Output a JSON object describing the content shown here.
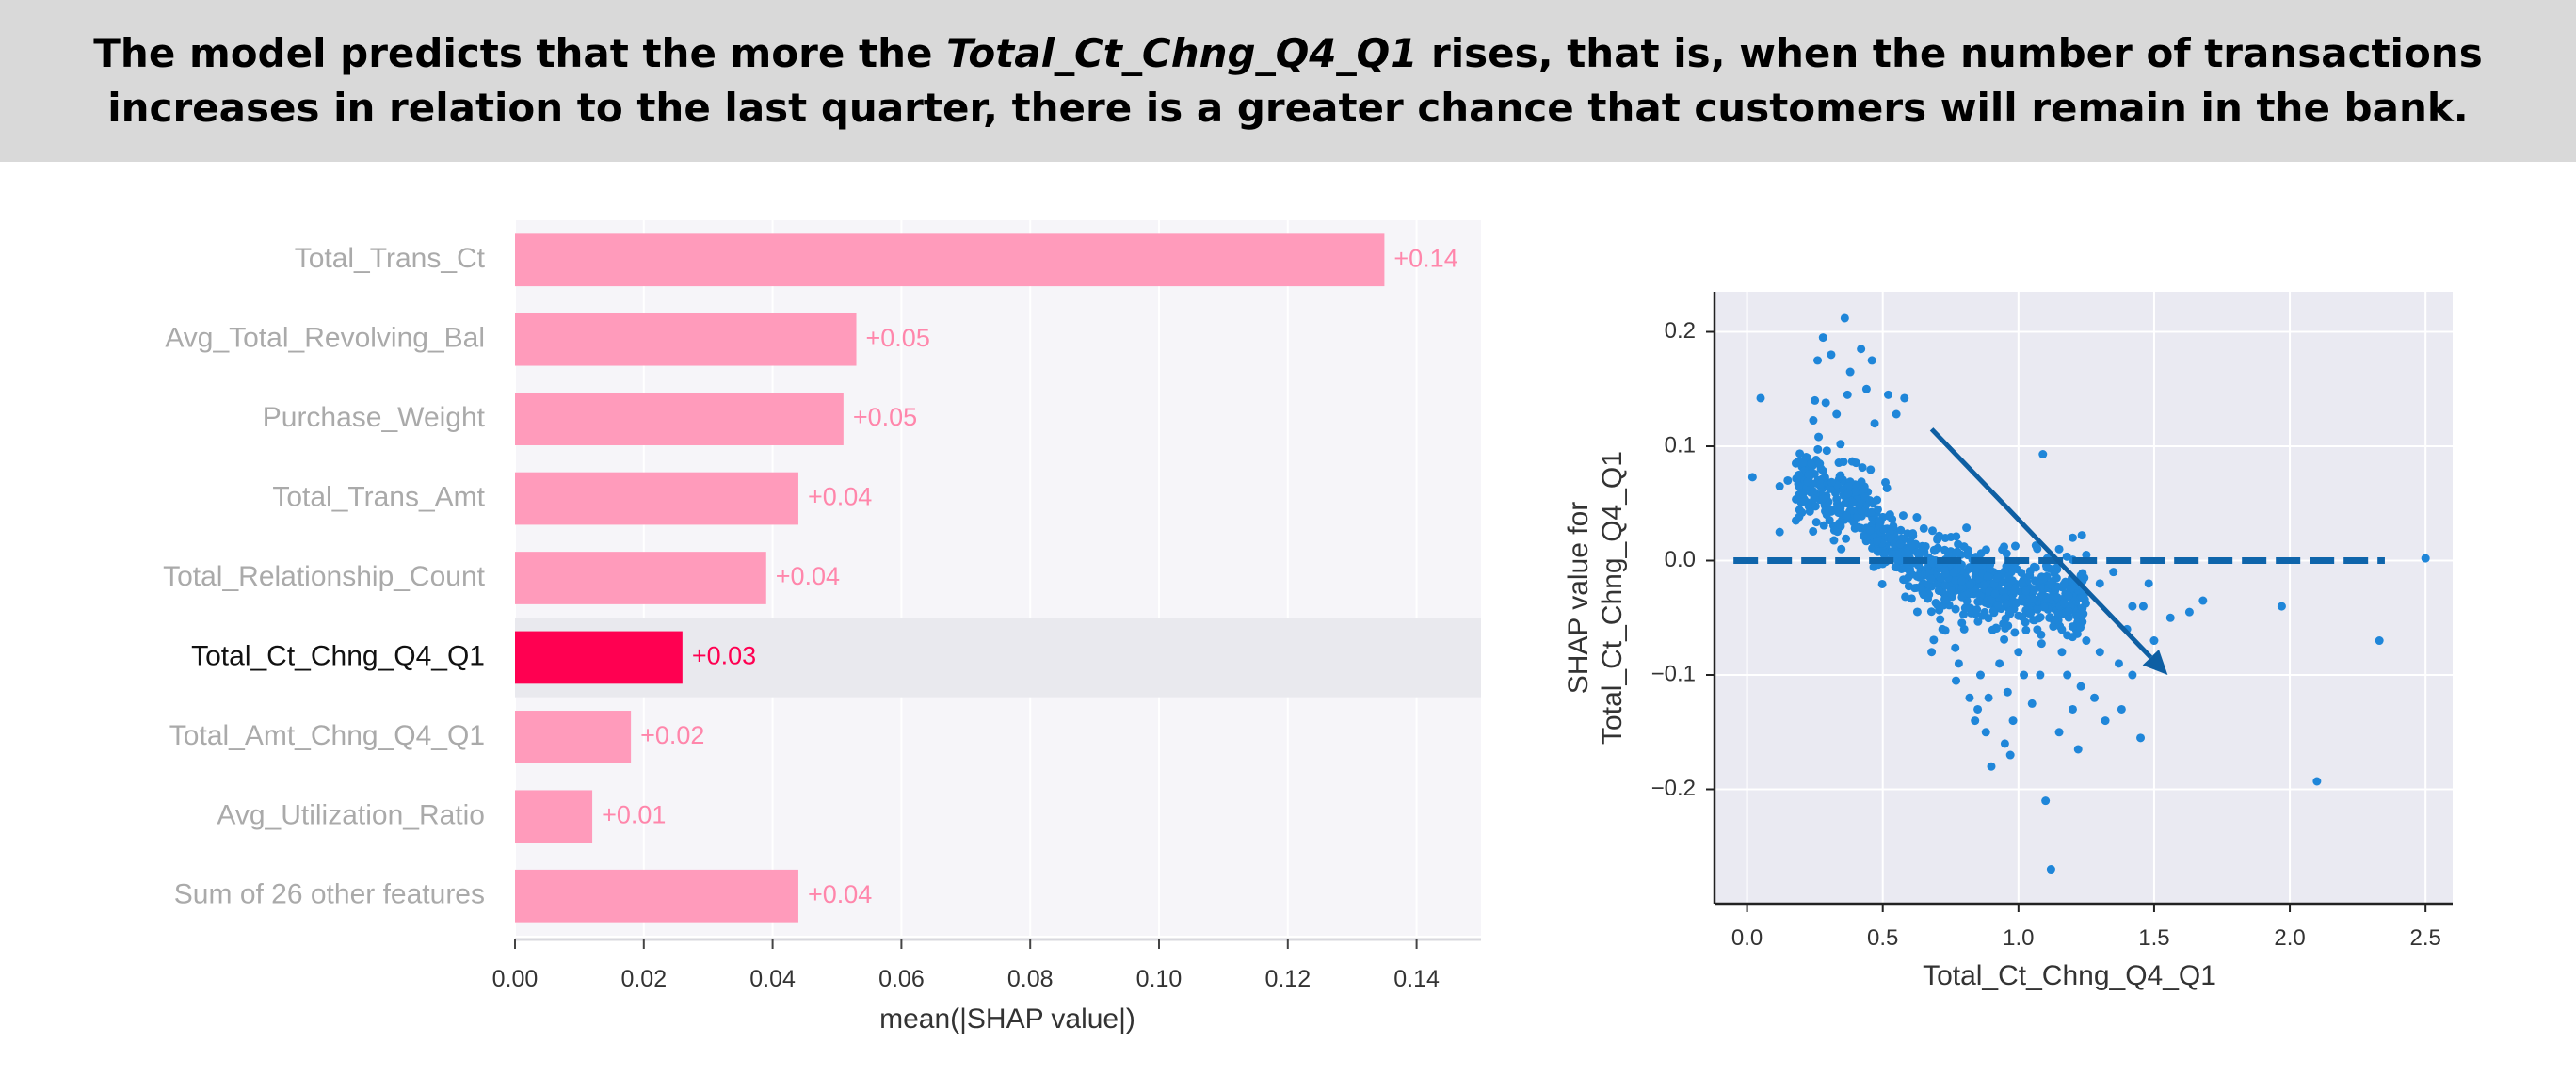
{
  "banner": {
    "pre": "The model predicts that the more the ",
    "em": "Total_Ct_Chng_Q4_Q1",
    "post": " rises, that is, when the number of transactions increases in relation to the last quarter, there is a greater chance that customers will remain in the bank."
  },
  "chart_data": [
    {
      "type": "bar",
      "orientation": "horizontal",
      "categories": [
        "Total_Trans_Ct",
        "Avg_Total_Revolving_Bal",
        "Purchase_Weight",
        "Total_Trans_Amt",
        "Total_Relationship_Count",
        "Total_Ct_Chng_Q4_Q1",
        "Total_Amt_Chng_Q4_Q1",
        "Avg_Utilization_Ratio",
        "Sum of 26 other features"
      ],
      "values": [
        0.135,
        0.053,
        0.051,
        0.044,
        0.039,
        0.026,
        0.018,
        0.012,
        0.044
      ],
      "value_labels": [
        "+0.14",
        "+0.05",
        "+0.05",
        "+0.04",
        "+0.04",
        "+0.03",
        "+0.02",
        "+0.01",
        "+0.04"
      ],
      "highlight": "Total_Ct_Chng_Q4_Q1",
      "xlabel": "mean(|SHAP value|)",
      "xlim": [
        0,
        0.15
      ],
      "xticks": [
        0.0,
        0.02,
        0.04,
        0.06,
        0.08,
        0.1,
        0.12,
        0.14
      ],
      "xtick_labels": [
        "0.00",
        "0.02",
        "0.04",
        "0.06",
        "0.08",
        "0.10",
        "0.12",
        "0.14"
      ],
      "colors": {
        "bar": "#ff9bbb",
        "highlight": "#ff0051",
        "label": "#ff86ab",
        "highlight_label": "#ff0051",
        "muted_text": "#aaaaaa",
        "band": "#e9e9ee",
        "plot_bg": "#f6f5f9"
      }
    },
    {
      "type": "scatter",
      "xlabel": "Total_Ct_Chng_Q4_Q1",
      "ylabel": [
        "SHAP value for",
        "Total_Ct_Chng_Q4_Q1"
      ],
      "xlim": [
        -0.12,
        2.6
      ],
      "ylim": [
        -0.3,
        0.235
      ],
      "xticks": [
        0.0,
        0.5,
        1.0,
        1.5,
        2.0,
        2.5
      ],
      "xtick_labels": [
        "0.0",
        "0.5",
        "1.0",
        "1.5",
        "2.0",
        "2.5"
      ],
      "yticks": [
        -0.2,
        -0.1,
        0.0,
        0.1,
        0.2
      ],
      "ytick_labels": [
        "−0.2",
        "−0.1",
        "0.0",
        "0.1",
        "0.2"
      ],
      "grid": true,
      "reference_line": {
        "y": 0.0,
        "x": [
          -0.05,
          2.35
        ],
        "style": "dashed",
        "color": "#0f65ab"
      },
      "arrow": {
        "from": [
          0.68,
          0.115
        ],
        "to": [
          1.55,
          -0.1
        ],
        "color": "#0e5fa3"
      },
      "point_color": "#1f86d9",
      "cluster_description": "≈1000 points following a decreasing band",
      "points": [
        [
          0.02,
          0.073
        ],
        [
          0.05,
          0.142
        ],
        [
          0.12,
          0.065
        ],
        [
          0.15,
          0.07
        ],
        [
          0.18,
          0.085
        ],
        [
          0.23,
          0.08
        ],
        [
          0.26,
          0.175
        ],
        [
          0.28,
          0.195
        ],
        [
          0.31,
          0.18
        ],
        [
          0.33,
          0.128
        ],
        [
          0.36,
          0.212
        ],
        [
          0.38,
          0.165
        ],
        [
          0.42,
          0.185
        ],
        [
          0.44,
          0.15
        ],
        [
          0.46,
          0.175
        ],
        [
          0.52,
          0.145
        ],
        [
          0.55,
          0.128
        ],
        [
          0.58,
          0.142
        ],
        [
          0.29,
          0.138
        ],
        [
          0.25,
          0.14
        ],
        [
          0.37,
          0.145
        ],
        [
          0.47,
          0.12
        ],
        [
          0.12,
          0.025
        ],
        [
          0.18,
          0.035
        ],
        [
          0.6,
          -0.01
        ],
        [
          0.65,
          -0.02
        ],
        [
          0.7,
          -0.02
        ],
        [
          0.72,
          -0.06
        ],
        [
          0.68,
          -0.08
        ],
        [
          0.78,
          -0.09
        ],
        [
          0.82,
          -0.12
        ],
        [
          0.85,
          -0.13
        ],
        [
          0.88,
          -0.15
        ],
        [
          0.9,
          -0.18
        ],
        [
          0.95,
          -0.16
        ],
        [
          0.98,
          -0.14
        ],
        [
          1.05,
          -0.125
        ],
        [
          1.1,
          -0.21
        ],
        [
          1.12,
          -0.27
        ],
        [
          1.15,
          -0.15
        ],
        [
          1.2,
          -0.13
        ],
        [
          1.22,
          -0.165
        ],
        [
          1.28,
          -0.12
        ],
        [
          1.32,
          -0.14
        ],
        [
          1.38,
          -0.13
        ],
        [
          1.42,
          -0.1
        ],
        [
          1.45,
          -0.155
        ],
        [
          1.4,
          -0.06
        ],
        [
          1.46,
          -0.04
        ],
        [
          1.5,
          -0.07
        ],
        [
          1.48,
          -0.02
        ],
        [
          1.56,
          -0.05
        ],
        [
          1.63,
          -0.045
        ],
        [
          1.68,
          -0.035
        ],
        [
          1.09,
          0.093
        ],
        [
          1.15,
          0.01
        ],
        [
          1.2,
          0.02
        ],
        [
          1.25,
          0.005
        ],
        [
          1.3,
          -0.02
        ],
        [
          1.35,
          -0.01
        ],
        [
          1.37,
          -0.09
        ],
        [
          1.42,
          -0.04
        ],
        [
          1.97,
          -0.04
        ],
        [
          2.1,
          -0.193
        ],
        [
          2.33,
          -0.07
        ],
        [
          2.5,
          0.002
        ],
        [
          0.74,
          -0.03
        ],
        [
          0.8,
          -0.06
        ],
        [
          1.02,
          -0.1
        ],
        [
          1.0,
          -0.08
        ],
        [
          0.93,
          -0.09
        ],
        [
          0.86,
          -0.1
        ],
        [
          0.77,
          -0.105
        ],
        [
          0.84,
          -0.14
        ],
        [
          0.96,
          -0.115
        ],
        [
          1.08,
          -0.1
        ],
        [
          1.16,
          -0.08
        ],
        [
          1.25,
          -0.07
        ],
        [
          1.3,
          -0.08
        ],
        [
          1.18,
          -0.1
        ],
        [
          0.89,
          -0.12
        ],
        [
          0.97,
          -0.17
        ],
        [
          1.23,
          -0.11
        ]
      ],
      "band_center": [
        [
          0.18,
          0.078
        ],
        [
          0.3,
          0.06
        ],
        [
          0.42,
          0.045
        ],
        [
          0.52,
          0.02
        ],
        [
          0.62,
          -0.005
        ],
        [
          0.75,
          -0.015
        ],
        [
          0.88,
          -0.025
        ],
        [
          1.0,
          -0.03
        ],
        [
          1.12,
          -0.035
        ],
        [
          1.25,
          -0.035
        ]
      ]
    }
  ]
}
